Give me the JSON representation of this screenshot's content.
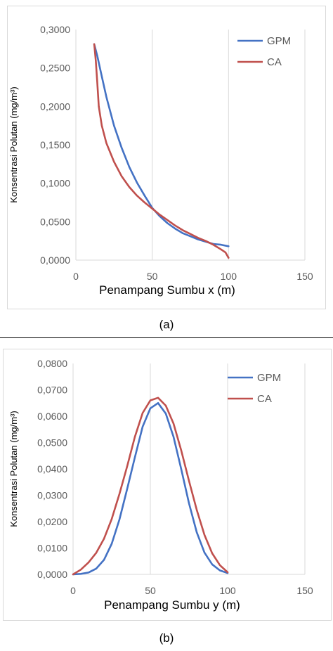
{
  "panels": [
    {
      "caption": "(a)",
      "chart_data": {
        "type": "line",
        "title": "",
        "xlabel": "Penampang Sumbu x (m)",
        "ylabel": "Konsentrasi Polutan (mg/m³)",
        "xlim": [
          0,
          150
        ],
        "ylim": [
          0,
          0.3
        ],
        "xticks": [
          0,
          50,
          100,
          150
        ],
        "xtick_labels": [
          "0",
          "50",
          "100",
          "150"
        ],
        "yticks": [
          0,
          0.05,
          0.1,
          0.15,
          0.2,
          0.25,
          0.3
        ],
        "ytick_labels": [
          "0,0000",
          "0,0500",
          "0,1000",
          "0,1500",
          "0,2000",
          "0,2500",
          "0,3000"
        ],
        "grid": "vertical",
        "legend_position": "top-right",
        "series": [
          {
            "name": "GPM",
            "color": "#4472c4",
            "x": [
              12,
              14,
              17,
              20,
              25,
              30,
              35,
              40,
              45,
              50,
              55,
              60,
              65,
              70,
              75,
              80,
              85,
              90,
              95,
              100
            ],
            "y": [
              0.281,
              0.266,
              0.239,
              0.212,
              0.175,
              0.146,
              0.121,
              0.101,
              0.084,
              0.068,
              0.057,
              0.048,
              0.041,
              0.035,
              0.031,
              0.027,
              0.024,
              0.021,
              0.02,
              0.018
            ]
          },
          {
            "name": "CA",
            "color": "#c0504d",
            "x": [
              12,
              13,
              14,
              15,
              17,
              20,
              25,
              30,
              35,
              40,
              45,
              50,
              55,
              60,
              65,
              70,
              75,
              80,
              85,
              90,
              95,
              98,
              100
            ],
            "y": [
              0.281,
              0.26,
              0.232,
              0.2,
              0.175,
              0.152,
              0.128,
              0.109,
              0.095,
              0.084,
              0.075,
              0.067,
              0.059,
              0.052,
              0.045,
              0.039,
              0.034,
              0.029,
              0.025,
              0.02,
              0.014,
              0.01,
              0.003
            ]
          }
        ]
      }
    },
    {
      "caption": "(b)",
      "chart_data": {
        "type": "line",
        "title": "",
        "xlabel": "Penampang Sumbu y (m)",
        "ylabel": "Konsentrasi Polutan (mg/m³)",
        "xlim": [
          0,
          150
        ],
        "ylim": [
          0,
          0.08
        ],
        "xticks": [
          0,
          50,
          100,
          150
        ],
        "xtick_labels": [
          "0",
          "50",
          "100",
          "150"
        ],
        "yticks": [
          0,
          0.01,
          0.02,
          0.03,
          0.04,
          0.05,
          0.06,
          0.07,
          0.08
        ],
        "ytick_labels": [
          "0,0000",
          "0,0100",
          "0,0200",
          "0,0300",
          "0,0400",
          "0,0500",
          "0,0600",
          "0,0700",
          "0,0800"
        ],
        "grid": "vertical",
        "legend_position": "top-right",
        "series": [
          {
            "name": "GPM",
            "color": "#4472c4",
            "x": [
              0,
              5,
              10,
              15,
              20,
              25,
              30,
              35,
              40,
              45,
              50,
              55,
              60,
              65,
              70,
              75,
              80,
              85,
              90,
              95,
              100
            ],
            "y": [
              0.0,
              0.0002,
              0.0007,
              0.0022,
              0.0055,
              0.0116,
              0.0208,
              0.0324,
              0.0444,
              0.056,
              0.063,
              0.065,
              0.061,
              0.0522,
              0.0399,
              0.027,
              0.016,
              0.0083,
              0.0038,
              0.0015,
              0.0005
            ]
          },
          {
            "name": "CA",
            "color": "#c0504d",
            "x": [
              0,
              5,
              10,
              15,
              20,
              25,
              30,
              35,
              40,
              45,
              50,
              55,
              60,
              65,
              70,
              75,
              80,
              85,
              90,
              95,
              100
            ],
            "y": [
              0.0,
              0.0018,
              0.0045,
              0.0082,
              0.0135,
              0.021,
              0.0305,
              0.041,
              0.0522,
              0.0612,
              0.066,
              0.067,
              0.064,
              0.0572,
              0.047,
              0.0355,
              0.0245,
              0.015,
              0.008,
              0.0035,
              0.0008
            ]
          }
        ]
      }
    }
  ]
}
